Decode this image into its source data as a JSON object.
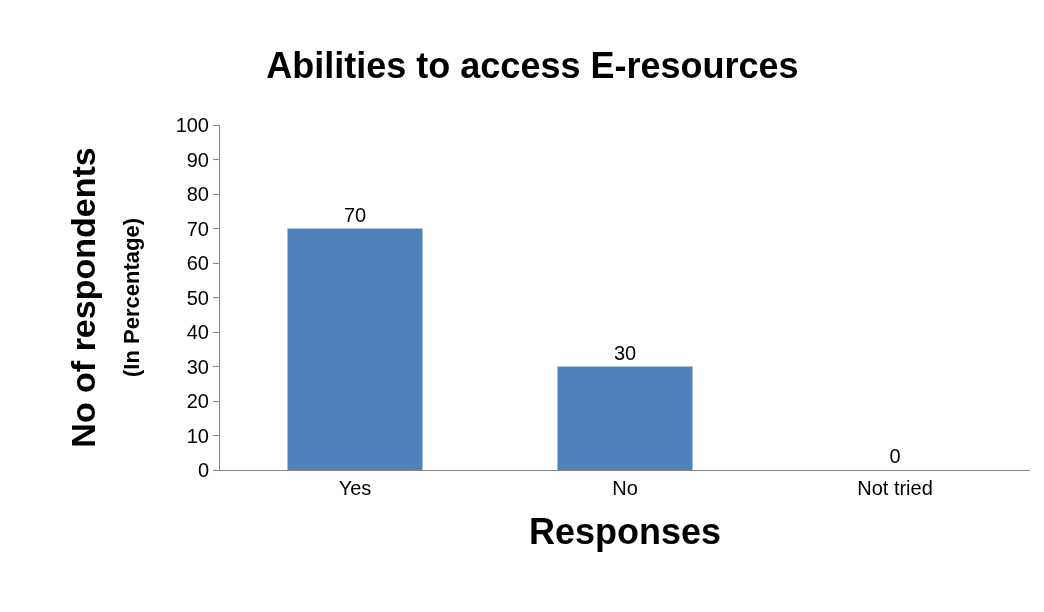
{
  "chart_data": {
    "type": "bar",
    "title": "Abilities to access E-resources",
    "xlabel": "Responses",
    "ylabel": [
      "No of respondents",
      "(In Percentage)"
    ],
    "categories": [
      "Yes",
      "No",
      "Not tried"
    ],
    "values": [
      70,
      30,
      0
    ],
    "color": "#4f81bd",
    "ylim": [
      0,
      100
    ],
    "yticks": [
      0,
      10,
      20,
      30,
      40,
      50,
      60,
      70,
      80,
      90,
      100
    ],
    "legend": false,
    "data_labels": true
  }
}
